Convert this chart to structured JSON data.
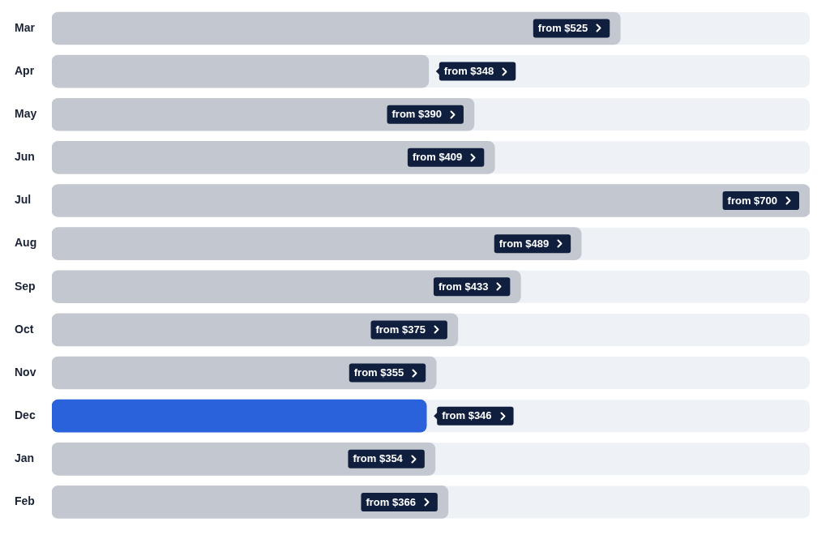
{
  "chart_data": {
    "type": "bar",
    "orientation": "horizontal",
    "categories": [
      "Mar",
      "Apr",
      "May",
      "Jun",
      "Jul",
      "Aug",
      "Sep",
      "Oct",
      "Nov",
      "Dec",
      "Jan",
      "Feb"
    ],
    "values": [
      525,
      348,
      390,
      409,
      700,
      489,
      433,
      375,
      355,
      346,
      354,
      366
    ],
    "colors": [
      "#c3c7cf",
      "#c3c7cf",
      "#c3c7cf",
      "#c3c7cf",
      "#c3c7cf",
      "#c3c7cf",
      "#c3c7cf",
      "#c3c7cf",
      "#c3c7cf",
      "#2962db",
      "#c3c7cf",
      "#c3c7cf"
    ],
    "value_labels": [
      "from $525",
      "from $348",
      "from $390",
      "from $409",
      "from $700",
      "from $489",
      "from $433",
      "from $375",
      "from $355",
      "from $346",
      "from $354",
      "from $366"
    ],
    "xlim": [
      0,
      700
    ],
    "tick_labels": "y"
  }
}
